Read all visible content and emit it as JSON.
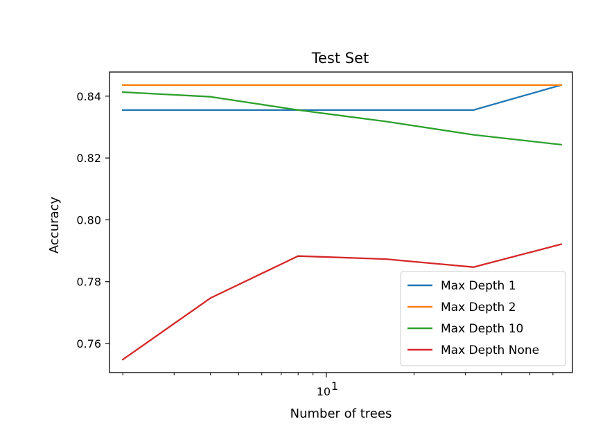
{
  "chart_data": {
    "type": "line",
    "title": "Test Set",
    "xlabel": "Number of trees",
    "ylabel": "Accuracy",
    "xscale": "log",
    "x": [
      2,
      4,
      8,
      16,
      32,
      64
    ],
    "xlim": [
      1.8,
      70
    ],
    "ylim": [
      0.7506,
      0.8478
    ],
    "xticks": [
      {
        "value": 10,
        "base": "10",
        "exp": "1"
      }
    ],
    "yticks": [
      {
        "value": 0.76,
        "label": "0.76"
      },
      {
        "value": 0.78,
        "label": "0.78"
      },
      {
        "value": 0.8,
        "label": "0.80"
      },
      {
        "value": 0.82,
        "label": "0.82"
      },
      {
        "value": 0.84,
        "label": "0.84"
      }
    ],
    "grid": false,
    "legend_position": "lower-right",
    "series": [
      {
        "name": "Max Depth 1",
        "color": "#1f77b4",
        "values": [
          0.8355,
          0.8355,
          0.8355,
          0.8355,
          0.8355,
          0.8436
        ]
      },
      {
        "name": "Max Depth 2",
        "color": "#ff7f0e",
        "values": [
          0.8436,
          0.8436,
          0.8436,
          0.8436,
          0.8436,
          0.8436
        ]
      },
      {
        "name": "Max Depth 10",
        "color": "#2ca02c",
        "values": [
          0.8413,
          0.8398,
          0.8355,
          0.8318,
          0.8275,
          0.8243
        ]
      },
      {
        "name": "Max Depth None",
        "color": "#d62728",
        "values": [
          0.7548,
          0.7747,
          0.7883,
          0.7873,
          0.7847,
          0.7921
        ]
      }
    ]
  }
}
